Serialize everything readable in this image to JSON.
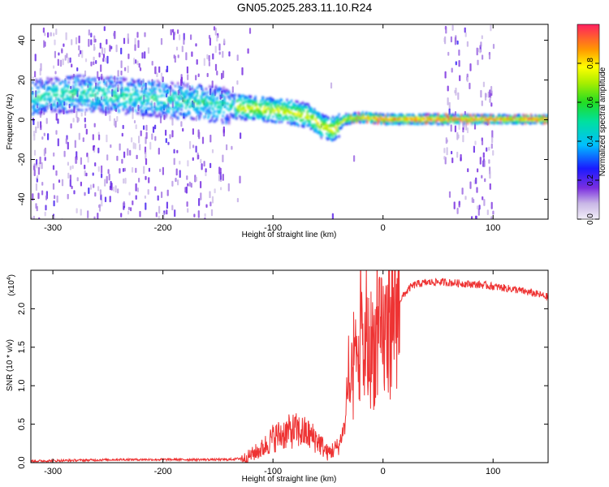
{
  "title": "GN05.2025.283.11.10.R24",
  "colors": {
    "snr_line": "#ee3333",
    "background": "#ffffff",
    "axis": "#000000"
  },
  "chart_data": [
    {
      "type": "heatmap",
      "title": "GN05.2025.283.11.10.R24",
      "xlabel": "Height of straight line (km)",
      "ylabel": "Frequency (Hz)",
      "xlim": [
        -320,
        150
      ],
      "ylim": [
        -50,
        48
      ],
      "xticks": [
        -300,
        -200,
        -100,
        0,
        100
      ],
      "xtick_labels": [
        "-300",
        "-200",
        "-100",
        "0",
        "100"
      ],
      "yticks": [
        -40,
        -20,
        0,
        20,
        40
      ],
      "ytick_labels": [
        "-40",
        "-20",
        "0",
        "20",
        "40"
      ],
      "ridge": {
        "description": "dominant frequency track",
        "x": [
          -320,
          -280,
          -240,
          -200,
          -160,
          -130,
          -110,
          -90,
          -70,
          -55,
          -45,
          -35,
          -20,
          0,
          50,
          100,
          150
        ],
        "y": [
          12,
          14,
          13,
          11,
          9,
          7,
          6,
          5,
          3,
          -3,
          -4,
          1,
          2,
          1,
          1,
          1,
          1
        ]
      },
      "colorbar": {
        "label": "Normalized spectral amplitude",
        "range": [
          0.0,
          1.0
        ],
        "ticks": [
          0.0,
          0.2,
          0.4,
          0.6,
          0.8
        ],
        "tick_labels": [
          "0.0",
          "0.2",
          "0.4",
          "0.6",
          "0.8"
        ]
      }
    },
    {
      "type": "line",
      "xlabel": "Height of straight line (km)",
      "ylabel": "SNR (10 * v/v)",
      "y_multiplier_label": "(x10",
      "y_multiplier_exp": "4",
      "y_multiplier_close": ")",
      "xlim": [
        -320,
        150
      ],
      "ylim": [
        0,
        2.5
      ],
      "xticks": [
        -300,
        -200,
        -100,
        0,
        100
      ],
      "xtick_labels": [
        "-300",
        "-200",
        "-100",
        "0",
        "100"
      ],
      "yticks": [
        0.0,
        0.5,
        1.0,
        1.5,
        2.0
      ],
      "ytick_labels": [
        "0.0",
        "0.5",
        "1.0",
        "1.5",
        "2.0"
      ],
      "series": [
        {
          "name": "SNR",
          "x": [
            -320,
            -280,
            -240,
            -200,
            -160,
            -140,
            -125,
            -110,
            -100,
            -90,
            -80,
            -70,
            -60,
            -50,
            -40,
            -35,
            -30,
            -25,
            -20,
            -15,
            -10,
            -5,
            0,
            5,
            10,
            15,
            20,
            25,
            30,
            40,
            50,
            60,
            70,
            80,
            90,
            100,
            110,
            120,
            130,
            140,
            150
          ],
          "y": [
            0.02,
            0.03,
            0.04,
            0.04,
            0.04,
            0.04,
            0.06,
            0.18,
            0.32,
            0.38,
            0.42,
            0.38,
            0.3,
            0.12,
            0.22,
            0.5,
            0.9,
            1.25,
            1.4,
            1.45,
            1.5,
            1.55,
            1.62,
            1.75,
            1.95,
            2.1,
            2.2,
            2.28,
            2.32,
            2.34,
            2.35,
            2.34,
            2.33,
            2.32,
            2.31,
            2.29,
            2.27,
            2.25,
            2.22,
            2.19,
            2.15
          ]
        }
      ]
    }
  ]
}
